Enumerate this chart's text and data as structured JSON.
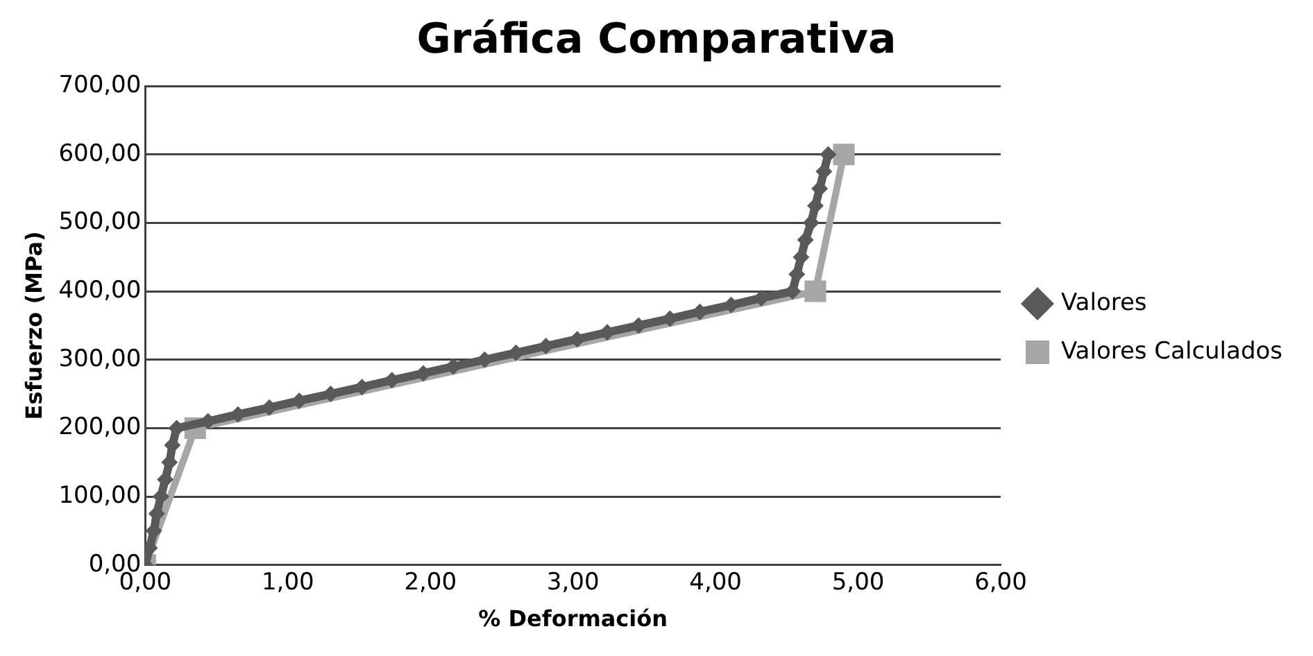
{
  "chart_data": {
    "type": "line",
    "title": "Gráfica Comparativa",
    "xlabel": "% Deformación",
    "ylabel": "Esfuerzo (MPa)",
    "xlim": [
      0,
      6
    ],
    "xticks": [
      {
        "value": 0,
        "label": "0,00"
      },
      {
        "value": 1,
        "label": "1,00"
      },
      {
        "value": 2,
        "label": "2,00"
      },
      {
        "value": 3,
        "label": "3,00"
      },
      {
        "value": 4,
        "label": "4,00"
      },
      {
        "value": 5,
        "label": "5,00"
      },
      {
        "value": 6,
        "label": "6,00"
      }
    ],
    "ylim": [
      0,
      700
    ],
    "yticks": [
      {
        "value": 0,
        "label": "0,00"
      },
      {
        "value": 100,
        "label": "100,00"
      },
      {
        "value": 200,
        "label": "200,00"
      },
      {
        "value": 300,
        "label": "300,00"
      },
      {
        "value": 400,
        "label": "400,00"
      },
      {
        "value": 500,
        "label": "500,00"
      },
      {
        "value": 600,
        "label": "600,00"
      },
      {
        "value": 700,
        "label": "700,00"
      }
    ],
    "grid": "y",
    "legend": "right",
    "line_style": "solid",
    "series": [
      {
        "name": "Valores",
        "color": "#595959",
        "marker": "diamond",
        "x": [
          0,
          0.03,
          0.06,
          0.08,
          0.11,
          0.14,
          0.17,
          0.19,
          0.22,
          0.44,
          0.65,
          0.87,
          1.08,
          1.3,
          1.52,
          1.73,
          1.95,
          2.16,
          2.38,
          2.6,
          2.81,
          3.03,
          3.24,
          3.46,
          3.68,
          3.89,
          4.11,
          4.32,
          4.54,
          4.57,
          4.6,
          4.63,
          4.67,
          4.7,
          4.73,
          4.76,
          4.79
        ],
        "values": [
          0,
          25,
          50,
          75,
          100,
          125,
          150,
          175,
          200,
          210,
          220,
          230,
          240,
          250,
          260,
          270,
          280,
          290,
          300,
          310,
          320,
          330,
          340,
          350,
          360,
          370,
          380,
          390,
          400,
          425,
          450,
          475,
          500,
          525,
          550,
          575,
          600
        ]
      },
      {
        "name": "Valores Calculados",
        "color": "#a6a6a6",
        "marker": "square",
        "x": [
          0,
          0.35,
          4.7,
          4.9
        ],
        "values": [
          0,
          200,
          400,
          600
        ]
      }
    ]
  }
}
